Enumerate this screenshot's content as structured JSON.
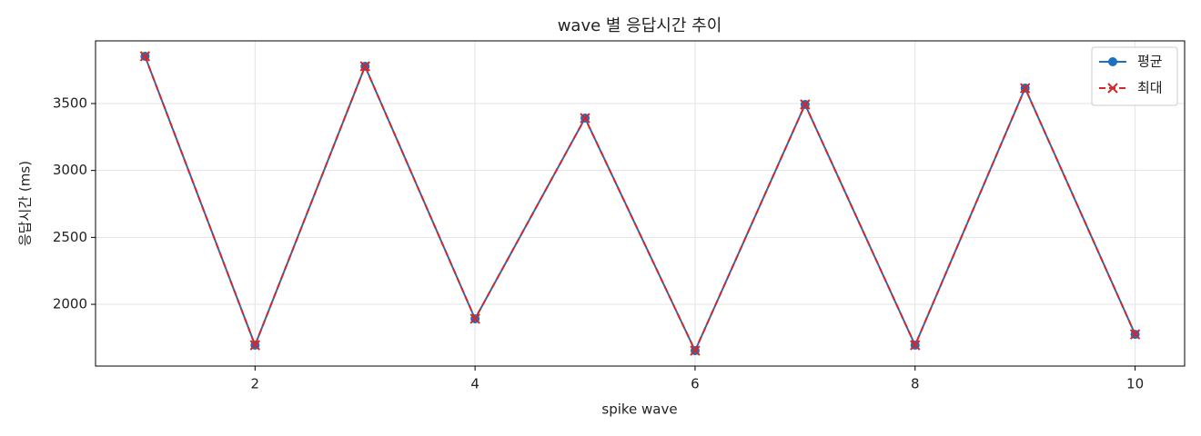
{
  "chart_data": {
    "type": "line",
    "title": "wave 별 응답시간 추이",
    "xlabel": "spike wave",
    "ylabel": "응답시간 (ms)",
    "x": [
      1,
      2,
      3,
      4,
      5,
      6,
      7,
      8,
      9,
      10
    ],
    "series": [
      {
        "name": "평균",
        "color": "#1f6fbf",
        "marker": "o",
        "linestyle": "solid",
        "values": [
          3853,
          1695,
          3778,
          1892,
          3391,
          1654,
          3493,
          1695,
          3615,
          1776
        ]
      },
      {
        "name": "최대",
        "color": "#d62728",
        "marker": "x",
        "linestyle": "dashed",
        "values": [
          3853,
          1695,
          3778,
          1892,
          3391,
          1654,
          3493,
          1695,
          3615,
          1776
        ]
      }
    ],
    "xlim": [
      0.55,
      10.45
    ],
    "xticks": [
      2,
      4,
      6,
      8,
      10
    ],
    "ylim": [
      1539,
      3968
    ],
    "yticks": [
      2000,
      2500,
      3000,
      3500
    ],
    "grid": true,
    "legend": "upper right"
  }
}
